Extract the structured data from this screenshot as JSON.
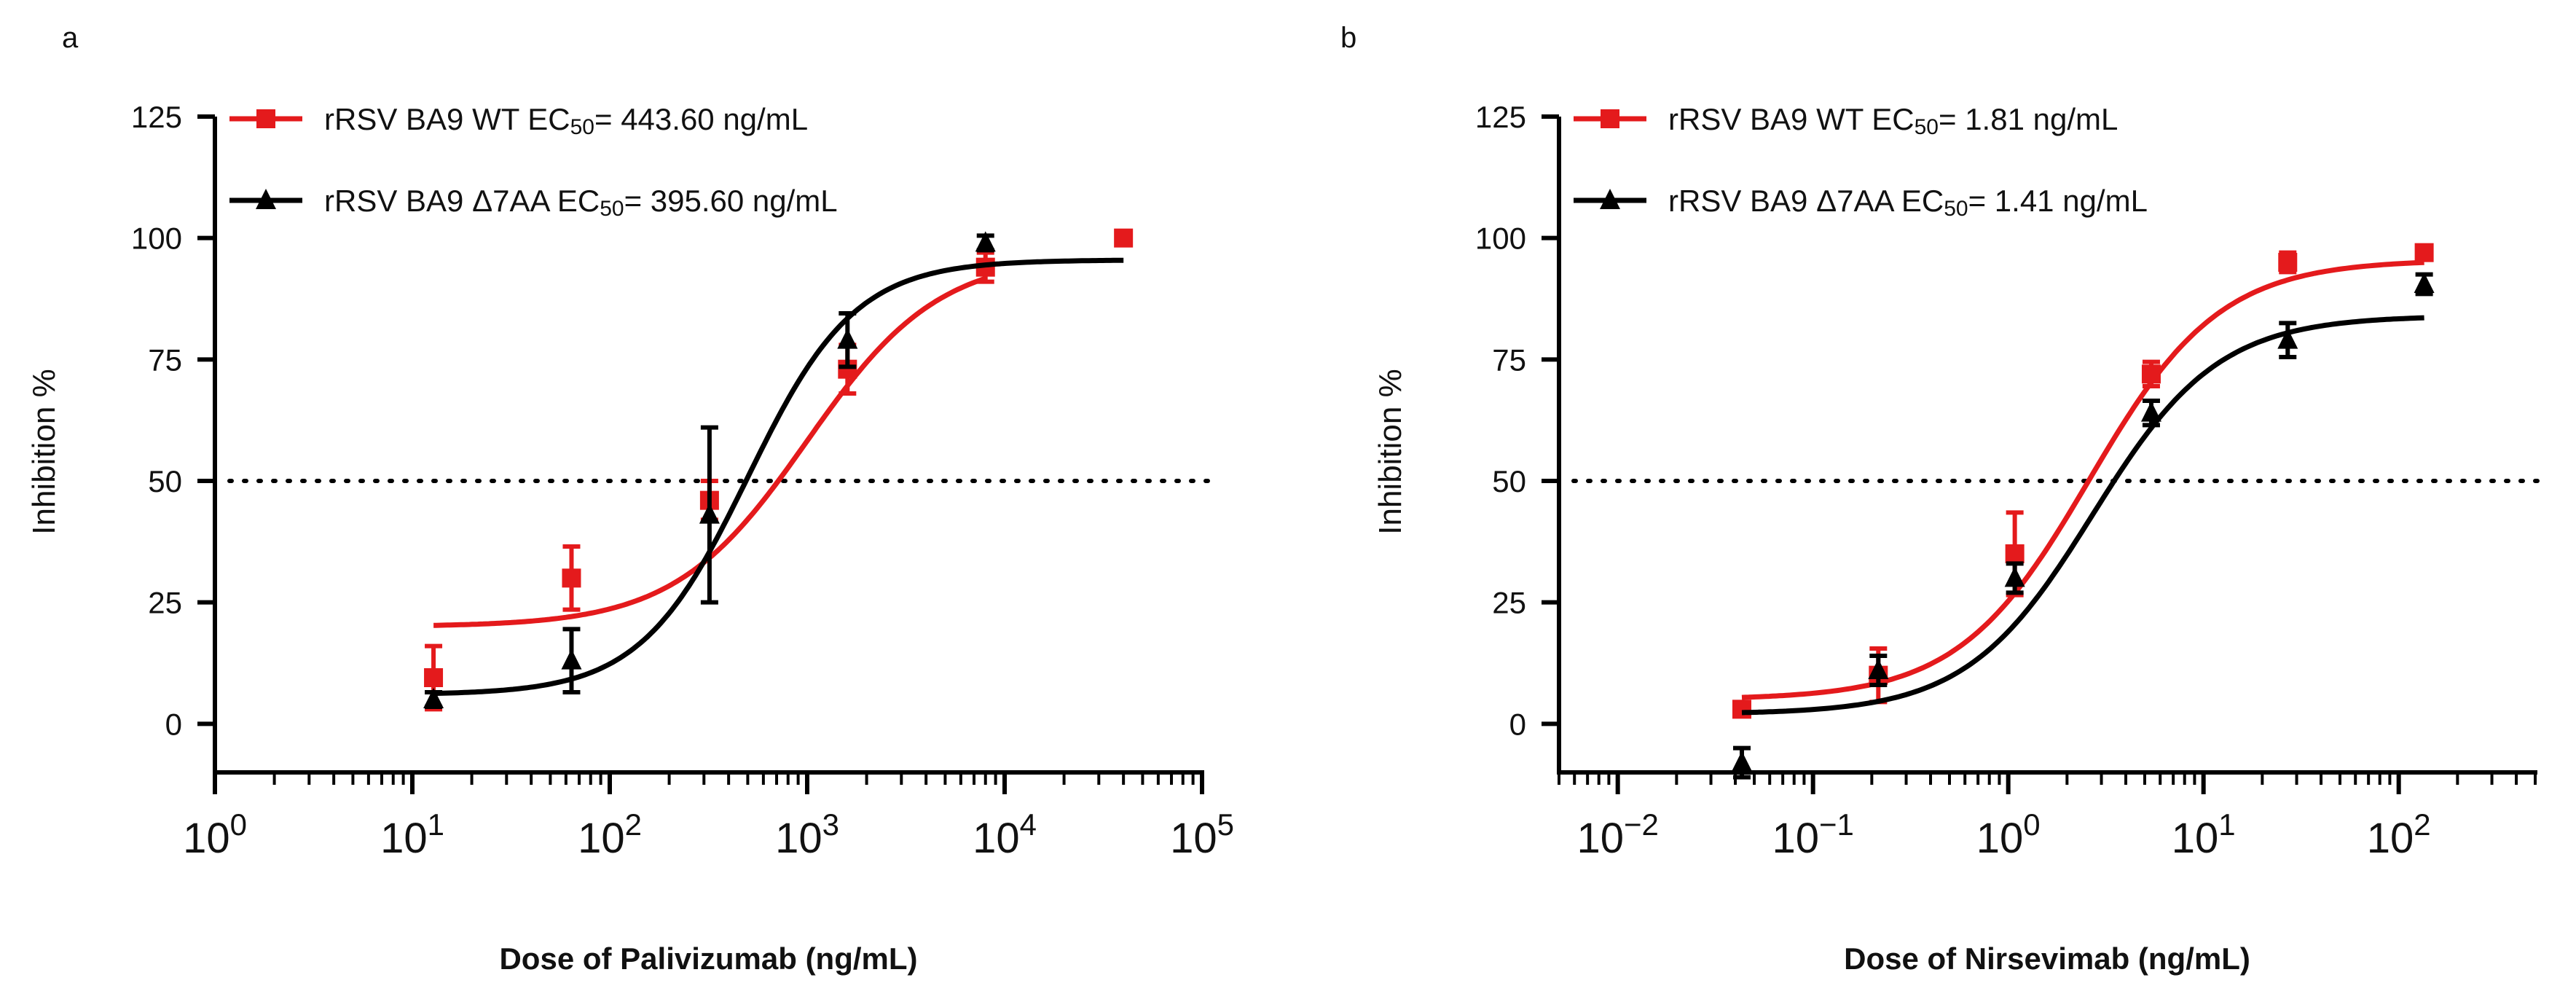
{
  "chart_data": [
    {
      "panel_label": "a",
      "type": "line",
      "x_scale": "log",
      "xlabel": "Dose of Palivizumab (ng/mL)",
      "ylabel": "Inhibition %",
      "xlim": [
        1,
        100000
      ],
      "ylim": [
        -10,
        125
      ],
      "y_ticks": [
        "0",
        "25",
        "50",
        "75",
        "100",
        "125"
      ],
      "x_ticks": [
        {
          "base": "10",
          "exp": "0"
        },
        {
          "base": "10",
          "exp": "1"
        },
        {
          "base": "10",
          "exp": "2"
        },
        {
          "base": "10",
          "exp": "3"
        },
        {
          "base": "10",
          "exp": "4"
        },
        {
          "base": "10",
          "exp": "5"
        }
      ],
      "reference_line": 50,
      "series": [
        {
          "name": "rRSV BA9 WT",
          "legend": {
            "name": "rRSV BA9 WT EC",
            "sub": "50",
            "value": "= 443.60 ng/mL"
          },
          "color": "#e41a1c",
          "marker": "square",
          "x": [
            12.8,
            64,
            320,
            1600,
            8000,
            40000
          ],
          "y": [
            9.5,
            30,
            46,
            73,
            94,
            100
          ],
          "err": [
            6.5,
            6.5,
            4,
            5,
            3,
            0
          ],
          "fit": {
            "bottom": 20,
            "top": 96.5,
            "ec50": 1000,
            "hill": 1.3,
            "xrange": [
              12.8,
              8000
            ]
          }
        },
        {
          "name": "rRSV BA9 Δ7AA",
          "legend": {
            "name": "rRSV BA9 Δ7AA EC",
            "sub": "50",
            "value": "= 395.60 ng/mL"
          },
          "color": "#000000",
          "marker": "triangle",
          "x": [
            12.8,
            64,
            320,
            1600,
            8000
          ],
          "y": [
            5,
            13,
            43,
            79,
            99
          ],
          "err": [
            1.5,
            6.5,
            18,
            5.5,
            1.5
          ],
          "fit": {
            "bottom": 6,
            "top": 95.5,
            "ec50": 500,
            "hill": 1.6,
            "xrange": [
              12.8,
              40000
            ]
          }
        }
      ]
    },
    {
      "panel_label": "b",
      "type": "line",
      "x_scale": "log",
      "xlabel": "Dose of Nirsevimab (ng/mL)",
      "ylabel": "Inhibition %",
      "xlim": [
        0.005,
        500
      ],
      "ylim": [
        -10,
        125
      ],
      "y_ticks": [
        "0",
        "25",
        "50",
        "75",
        "100",
        "125"
      ],
      "x_ticks": [
        {
          "base": "10",
          "exp": "−2"
        },
        {
          "base": "10",
          "exp": "−1"
        },
        {
          "base": "10",
          "exp": "0"
        },
        {
          "base": "10",
          "exp": "1"
        },
        {
          "base": "10",
          "exp": "2"
        }
      ],
      "reference_line": 50,
      "series": [
        {
          "name": "rRSV BA9 WT",
          "legend": {
            "name": "rRSV BA9 WT EC",
            "sub": "50",
            "value": "= 1.81 ng/mL"
          },
          "color": "#e41a1c",
          "marker": "square",
          "x": [
            0.0432,
            0.216,
            1.08,
            5.4,
            27,
            135
          ],
          "y": [
            3,
            10,
            35,
            72,
            95,
            97
          ],
          "err": [
            0,
            5.5,
            8.5,
            2.5,
            2,
            0
          ],
          "fit": {
            "bottom": 5,
            "top": 95.5,
            "ec50": 2.6,
            "hill": 1.3,
            "xrange": [
              0.0432,
              135
            ]
          }
        },
        {
          "name": "rRSV BA9 Δ7AA",
          "legend": {
            "name": "rRSV BA9 Δ7AA EC",
            "sub": "50",
            "value": "= 1.41 ng/mL"
          },
          "color": "#000000",
          "marker": "triangle",
          "x": [
            0.0432,
            0.216,
            1.08,
            5.4,
            27,
            135
          ],
          "y": [
            -8,
            11,
            30,
            64,
            79,
            90.5
          ],
          "err": [
            3,
            3,
            3,
            2.5,
            3.5,
            2
          ],
          "fit": {
            "bottom": 2,
            "top": 84,
            "ec50": 2.7,
            "hill": 1.35,
            "xrange": [
              0.0432,
              135
            ]
          }
        }
      ]
    }
  ]
}
